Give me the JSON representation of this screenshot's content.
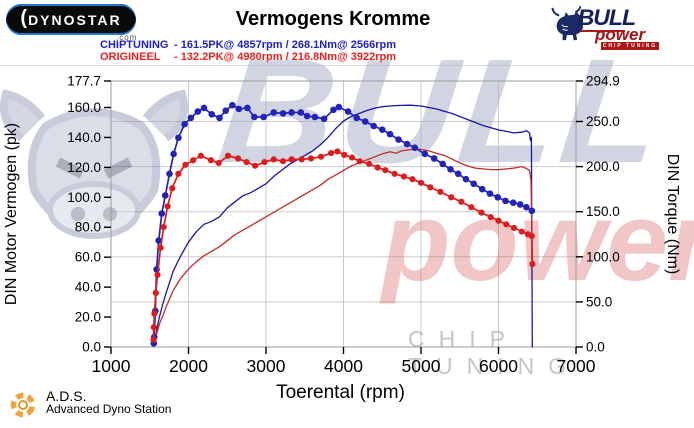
{
  "header": {
    "dynostar_logo_text": "DYNOSTAR",
    "dynostar_domain": ".com",
    "title": "Vermogens Kromme",
    "legend": [
      {
        "label": "CHIPTUNING",
        "detail": "- 161.5PK@ 4857rpm / 268.1Nm@ 2566rpm",
        "color": "#2020d0"
      },
      {
        "label": "ORIGINEEL",
        "detail": "- 132.2PK@ 4980rpm / 216.8Nm@ 3922rpm",
        "color": "#ee2020"
      }
    ],
    "bull_logo": {
      "bull": "BULL",
      "power": "power",
      "tagline": "CHIP TUNING"
    }
  },
  "watermark": {
    "bull": "BULL",
    "power": "power",
    "tagline": "CHIP TUNING"
  },
  "footer": {
    "ads_abbr": "A.D.S.",
    "ads_full": "Advanced Dyno Station"
  },
  "chart_data": {
    "type": "line",
    "title": "Vermogens Kromme",
    "xlabel": "Toerental (rpm)",
    "ylabel_left": "DIN Motor Vermogen (pk)",
    "ylabel_right": "DIN Torque (Nm)",
    "xlim": [
      1000,
      7000
    ],
    "ylim_left": [
      0,
      177.7
    ],
    "ylim_right": [
      0,
      294.9
    ],
    "grid": true,
    "x_ticks": [
      1000,
      2000,
      3000,
      4000,
      5000,
      6000,
      7000
    ],
    "x_tick_labels": [
      "1000",
      "2000",
      "3000",
      "4000",
      "5000",
      "6000",
      "7000"
    ],
    "yticks_left": [
      0,
      20,
      40,
      60,
      80,
      100,
      120,
      140,
      160,
      177.7
    ],
    "yticks_left_labels": [
      "0.0",
      "20.0",
      "40.0",
      "60.0",
      "80.0",
      "100.0",
      "120.0",
      "140.0",
      "160.0",
      "177.7"
    ],
    "yticks_right": [
      0,
      50,
      100,
      150,
      200,
      250,
      294.9
    ],
    "yticks_right_labels": [
      "0.0",
      "50.0",
      "100.0",
      "150.0",
      "200.0",
      "250.0",
      "294.9"
    ],
    "peaks": {
      "chiptuning": {
        "power_pk": 161.5,
        "power_rpm": 4857,
        "torque_nm": 268.1,
        "torque_rpm": 2566
      },
      "origineel": {
        "power_pk": 132.2,
        "power_rpm": 4980,
        "torque_nm": 216.8,
        "torque_rpm": 3922
      }
    },
    "series": [
      {
        "name": "chiptuning-power",
        "axis": "left",
        "unit": "pk",
        "color": "#1818a2",
        "width": 1.3,
        "markers": false,
        "points": [
          [
            1555,
            2
          ],
          [
            1575,
            6
          ],
          [
            1595,
            13
          ],
          [
            1625,
            20
          ],
          [
            1665,
            28
          ],
          [
            1705,
            35
          ],
          [
            1755,
            43
          ],
          [
            1805,
            51
          ],
          [
            1900,
            61
          ],
          [
            2000,
            70
          ],
          [
            2100,
            77
          ],
          [
            2200,
            82
          ],
          [
            2300,
            84
          ],
          [
            2400,
            87
          ],
          [
            2500,
            93
          ],
          [
            2600,
            97
          ],
          [
            2700,
            101
          ],
          [
            2800,
            103
          ],
          [
            2900,
            106
          ],
          [
            3000,
            109
          ],
          [
            3100,
            114
          ],
          [
            3200,
            118
          ],
          [
            3300,
            122
          ],
          [
            3400,
            125
          ],
          [
            3500,
            128
          ],
          [
            3600,
            131
          ],
          [
            3700,
            135
          ],
          [
            3800,
            140
          ],
          [
            3900,
            146
          ],
          [
            4000,
            151
          ],
          [
            4100,
            154
          ],
          [
            4200,
            156
          ],
          [
            4300,
            158
          ],
          [
            4400,
            159.5
          ],
          [
            4500,
            160.5
          ],
          [
            4600,
            161
          ],
          [
            4700,
            161.3
          ],
          [
            4857,
            161.5
          ],
          [
            5000,
            161
          ],
          [
            5100,
            160
          ],
          [
            5200,
            159
          ],
          [
            5300,
            157.5
          ],
          [
            5400,
            156
          ],
          [
            5500,
            154
          ],
          [
            5600,
            152
          ],
          [
            5700,
            150
          ],
          [
            5800,
            148
          ],
          [
            5900,
            146.5
          ],
          [
            6000,
            145
          ],
          [
            6100,
            144
          ],
          [
            6200,
            143
          ],
          [
            6300,
            143.5
          ],
          [
            6360,
            144.5
          ],
          [
            6400,
            143
          ],
          [
            6412,
            138
          ],
          [
            6424,
            140
          ],
          [
            6436,
            0
          ]
        ]
      },
      {
        "name": "origineel-power",
        "axis": "left",
        "unit": "pk",
        "color": "#c42c2c",
        "width": 1.3,
        "markers": false,
        "points": [
          [
            1550,
            2
          ],
          [
            1575,
            6
          ],
          [
            1600,
            11
          ],
          [
            1630,
            16
          ],
          [
            1670,
            21
          ],
          [
            1705,
            26
          ],
          [
            1755,
            32
          ],
          [
            1805,
            38
          ],
          [
            1900,
            46
          ],
          [
            2000,
            52
          ],
          [
            2100,
            57
          ],
          [
            2200,
            61
          ],
          [
            2300,
            64
          ],
          [
            2400,
            67
          ],
          [
            2500,
            71
          ],
          [
            2600,
            75
          ],
          [
            2700,
            78
          ],
          [
            2800,
            81
          ],
          [
            2900,
            84
          ],
          [
            3000,
            87
          ],
          [
            3100,
            90
          ],
          [
            3200,
            93
          ],
          [
            3300,
            96
          ],
          [
            3400,
            99
          ],
          [
            3500,
            102
          ],
          [
            3600,
            105
          ],
          [
            3700,
            108
          ],
          [
            3800,
            112
          ],
          [
            3900,
            115
          ],
          [
            4000,
            118
          ],
          [
            4100,
            121
          ],
          [
            4200,
            123
          ],
          [
            4300,
            125
          ],
          [
            4400,
            127
          ],
          [
            4500,
            129
          ],
          [
            4600,
            130.5
          ],
          [
            4680,
            129.5
          ],
          [
            4750,
            131
          ],
          [
            4850,
            131.8
          ],
          [
            4980,
            132.2
          ],
          [
            5100,
            131
          ],
          [
            5200,
            129.5
          ],
          [
            5300,
            128
          ],
          [
            5400,
            125.5
          ],
          [
            5500,
            123
          ],
          [
            5600,
            121
          ],
          [
            5700,
            119.5
          ],
          [
            5800,
            119
          ],
          [
            5900,
            118.5
          ],
          [
            6000,
            118.5
          ],
          [
            6100,
            119
          ],
          [
            6200,
            119.5
          ],
          [
            6300,
            120.5
          ],
          [
            6350,
            119.5
          ],
          [
            6400,
            118
          ],
          [
            6420,
            111
          ],
          [
            6436,
            57
          ]
        ]
      },
      {
        "name": "chiptuning-torque",
        "axis": "right",
        "unit": "Nm",
        "color": "#2222bc",
        "width": 1.7,
        "markers": true,
        "marker_r": 3.3,
        "points": [
          [
            1552,
            4
          ],
          [
            1558,
            11
          ],
          [
            1572,
            40
          ],
          [
            1588,
            86
          ],
          [
            1615,
            118
          ],
          [
            1655,
            148
          ],
          [
            1700,
            168
          ],
          [
            1755,
            192
          ],
          [
            1808,
            214
          ],
          [
            1870,
            232
          ],
          [
            1950,
            247
          ],
          [
            2030,
            254
          ],
          [
            2120,
            261
          ],
          [
            2200,
            265
          ],
          [
            2300,
            258
          ],
          [
            2400,
            254
          ],
          [
            2480,
            262
          ],
          [
            2566,
            268.1
          ],
          [
            2650,
            264
          ],
          [
            2760,
            265
          ],
          [
            2850,
            255
          ],
          [
            2970,
            255
          ],
          [
            3100,
            260
          ],
          [
            3220,
            259
          ],
          [
            3330,
            260
          ],
          [
            3450,
            260
          ],
          [
            3530,
            256
          ],
          [
            3630,
            255
          ],
          [
            3750,
            253
          ],
          [
            3870,
            263
          ],
          [
            3940,
            266
          ],
          [
            4060,
            261
          ],
          [
            4170,
            254
          ],
          [
            4280,
            250
          ],
          [
            4390,
            245
          ],
          [
            4500,
            241
          ],
          [
            4600,
            236
          ],
          [
            4710,
            230
          ],
          [
            4820,
            225
          ],
          [
            4920,
            221
          ],
          [
            5050,
            214
          ],
          [
            5170,
            209
          ],
          [
            5280,
            203
          ],
          [
            5380,
            197
          ],
          [
            5480,
            192
          ],
          [
            5580,
            186
          ],
          [
            5680,
            181
          ],
          [
            5790,
            175
          ],
          [
            5890,
            170
          ],
          [
            5990,
            166
          ],
          [
            6090,
            162
          ],
          [
            6190,
            160
          ],
          [
            6280,
            158
          ],
          [
            6360,
            155
          ],
          [
            6430,
            151
          ]
        ]
      },
      {
        "name": "origineel-torque",
        "axis": "right",
        "unit": "Nm",
        "color": "#dd1d1d",
        "width": 1.7,
        "markers": true,
        "marker_r": 3.1,
        "points": [
          [
            1548,
            8
          ],
          [
            1552,
            22
          ],
          [
            1560,
            37
          ],
          [
            1578,
            60
          ],
          [
            1600,
            80
          ],
          [
            1640,
            110
          ],
          [
            1680,
            133
          ],
          [
            1730,
            156
          ],
          [
            1790,
            176
          ],
          [
            1870,
            192
          ],
          [
            1960,
            202
          ],
          [
            2060,
            207
          ],
          [
            2160,
            212
          ],
          [
            2290,
            207
          ],
          [
            2390,
            204
          ],
          [
            2510,
            212
          ],
          [
            2640,
            209
          ],
          [
            2750,
            205
          ],
          [
            2860,
            201
          ],
          [
            2980,
            205
          ],
          [
            3100,
            208
          ],
          [
            3220,
            206
          ],
          [
            3330,
            208
          ],
          [
            3460,
            208
          ],
          [
            3580,
            209
          ],
          [
            3710,
            211
          ],
          [
            3840,
            215
          ],
          [
            3922,
            216.8
          ],
          [
            4010,
            213
          ],
          [
            4110,
            210
          ],
          [
            4210,
            206
          ],
          [
            4330,
            203
          ],
          [
            4440,
            199
          ],
          [
            4540,
            196
          ],
          [
            4660,
            192
          ],
          [
            4780,
            189
          ],
          [
            4890,
            186
          ],
          [
            5000,
            182
          ],
          [
            5120,
            177
          ],
          [
            5250,
            172
          ],
          [
            5390,
            166
          ],
          [
            5520,
            161
          ],
          [
            5650,
            155
          ],
          [
            5780,
            149
          ],
          [
            5900,
            144
          ],
          [
            6000,
            140
          ],
          [
            6100,
            136
          ],
          [
            6200,
            132
          ],
          [
            6300,
            128
          ],
          [
            6380,
            125
          ],
          [
            6430,
            123
          ],
          [
            6438,
            92
          ]
        ]
      }
    ]
  }
}
